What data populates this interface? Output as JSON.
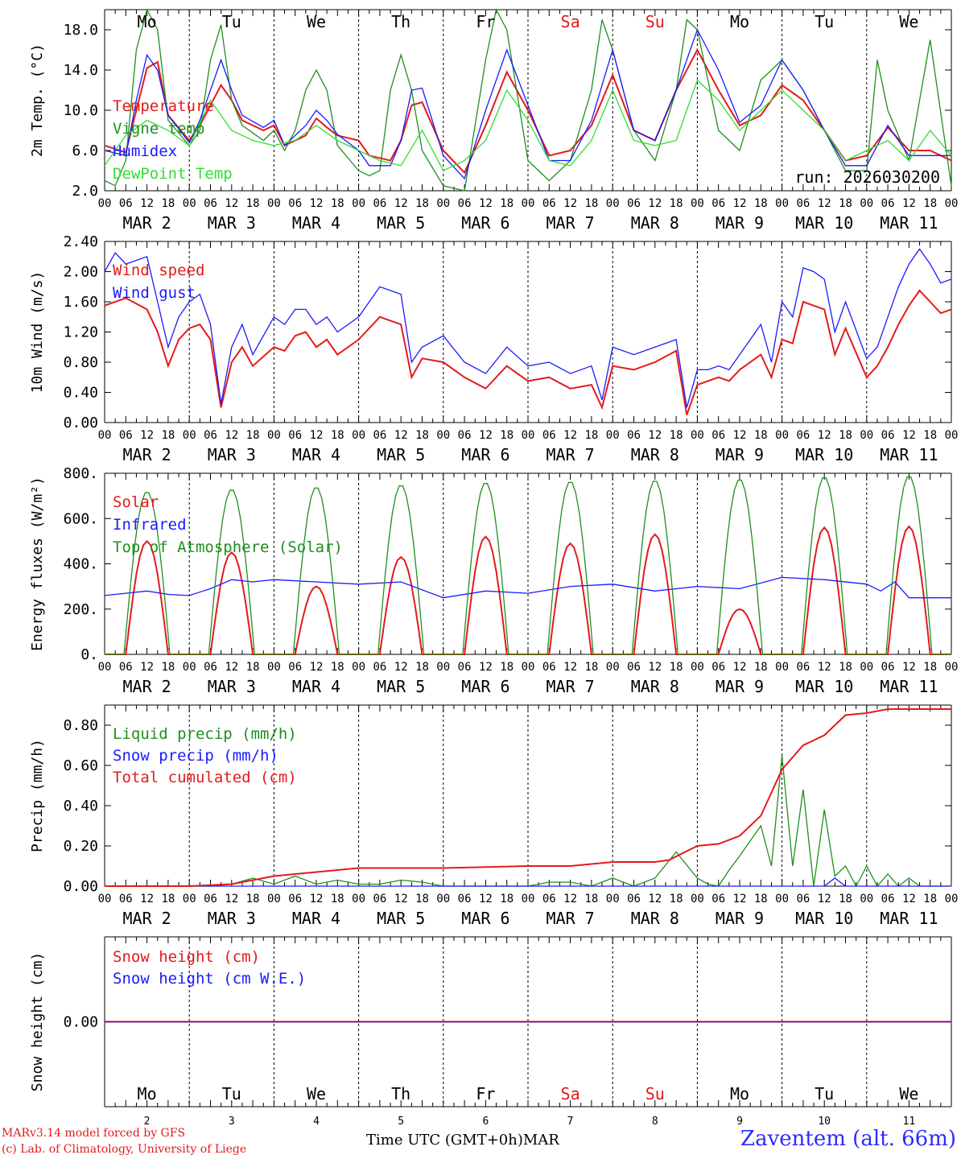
{
  "colors": {
    "red": "#e31a1c",
    "green": "#1f8f1f",
    "blue": "#1a1aff",
    "lightgreen": "#33dd33",
    "grid": "#000000"
  },
  "days": [
    {
      "label": "Mo",
      "weekend": false,
      "date": "2",
      "month_label": "MAR  2"
    },
    {
      "label": "Tu",
      "weekend": false,
      "date": "3",
      "month_label": "MAR  3"
    },
    {
      "label": "We",
      "weekend": false,
      "date": "4",
      "month_label": "MAR  4"
    },
    {
      "label": "Th",
      "weekend": false,
      "date": "5",
      "month_label": "MAR  5"
    },
    {
      "label": "Fr",
      "weekend": false,
      "date": "6",
      "month_label": "MAR  6"
    },
    {
      "label": "Sa",
      "weekend": true,
      "date": "7",
      "month_label": "MAR  7"
    },
    {
      "label": "Su",
      "weekend": true,
      "date": "8",
      "month_label": "MAR  8"
    },
    {
      "label": "Mo",
      "weekend": false,
      "date": "9",
      "month_label": "MAR  9"
    },
    {
      "label": "Tu",
      "weekend": false,
      "date": "10",
      "month_label": "MAR 10"
    },
    {
      "label": "We",
      "weekend": false,
      "date": "11",
      "month_label": "MAR 11"
    }
  ],
  "hour_ticks": [
    "00",
    "06",
    "12",
    "18"
  ],
  "final_tick": "00",
  "run_label": "run: 2026030200",
  "footer": {
    "credit_line1": "MARv3.14 model forced by GFS",
    "credit_line2": "(c) Lab. of Climatology, University of Liege",
    "axis_caption": "Time UTC (GMT+0h)",
    "month": "MAR",
    "station": "Zaventem (alt. 66m)"
  },
  "chart_data": [
    {
      "type": "line",
      "ylabel": "2m Temp. (°C)",
      "ylim": [
        2.0,
        20.0
      ],
      "yticks": [
        2.0,
        6.0,
        10.0,
        14.0,
        18.0
      ],
      "ytick_labels": [
        "2.0",
        "6.0",
        "10.0",
        "14.0",
        "18.0"
      ],
      "x_unit": "hours since MAR 2 00 UTC",
      "series": [
        {
          "name": "Temperature",
          "color": "red",
          "x": [
            0,
            6,
            9,
            12,
            15,
            18,
            24,
            27,
            33,
            36,
            39,
            45,
            48,
            51,
            57,
            60,
            63,
            66,
            72,
            75,
            81,
            84,
            87,
            90,
            96,
            102,
            108,
            114,
            120,
            126,
            132,
            138,
            144,
            150,
            156,
            162,
            168,
            174,
            180,
            186,
            192,
            198,
            204,
            210,
            216,
            222,
            228,
            234,
            240
          ],
          "values": [
            6.5,
            5.8,
            10,
            14.2,
            14.8,
            9.5,
            7.0,
            8.5,
            12.5,
            11.0,
            9.0,
            8.0,
            8.5,
            6.5,
            7.5,
            9.2,
            8.3,
            7.5,
            7.0,
            5.5,
            5.0,
            7.0,
            10.5,
            10.8,
            6.0,
            3.8,
            8.5,
            13.8,
            10.0,
            5.5,
            6.0,
            8.5,
            13.5,
            8.0,
            7.0,
            12.0,
            16.0,
            12.0,
            8.5,
            9.5,
            12.5,
            11.0,
            8.0,
            5.0,
            5.5,
            8.3,
            6.0,
            6.0,
            5.0
          ]
        },
        {
          "name": "Vigne temp",
          "color": "green",
          "x": [
            0,
            3,
            6,
            9,
            12,
            15,
            18,
            24,
            27,
            30,
            33,
            36,
            39,
            45,
            48,
            51,
            54,
            57,
            60,
            63,
            66,
            72,
            75,
            78,
            81,
            84,
            87,
            90,
            96,
            102,
            108,
            111,
            114,
            120,
            126,
            132,
            138,
            141,
            144,
            150,
            156,
            162,
            165,
            168,
            174,
            180,
            186,
            192,
            198,
            204,
            210,
            216,
            219,
            222,
            228,
            234,
            240
          ],
          "values": [
            3.0,
            2.5,
            5,
            16,
            20,
            18,
            9,
            6.5,
            8,
            15,
            18.5,
            11,
            8.5,
            7.0,
            8.0,
            6.0,
            8,
            12,
            14,
            12,
            6.5,
            4.0,
            3.5,
            4,
            12,
            15.5,
            12,
            6,
            2.5,
            2.0,
            15,
            20,
            18,
            5,
            3,
            5,
            12,
            19,
            16,
            8,
            5,
            12,
            19,
            18,
            8,
            6,
            13,
            15,
            12,
            8,
            4,
            4,
            15,
            10,
            5,
            17,
            2.5
          ]
        },
        {
          "name": "Humidex",
          "color": "blue",
          "x": [
            0,
            6,
            9,
            12,
            15,
            18,
            24,
            27,
            33,
            36,
            39,
            45,
            48,
            51,
            57,
            60,
            63,
            66,
            72,
            75,
            81,
            84,
            87,
            90,
            96,
            102,
            108,
            114,
            120,
            126,
            132,
            138,
            144,
            150,
            156,
            162,
            168,
            174,
            180,
            186,
            192,
            198,
            204,
            210,
            216,
            222,
            228,
            234,
            240
          ],
          "values": [
            6.0,
            5.5,
            11,
            15.5,
            14,
            9.5,
            6.8,
            9,
            15,
            12,
            9.5,
            8.3,
            9,
            6.5,
            8.5,
            10,
            9,
            7.6,
            6,
            4.5,
            4.5,
            7,
            12,
            12.2,
            5.5,
            3.2,
            10,
            16,
            10.5,
            5,
            5,
            9,
            16,
            8,
            7,
            12,
            18,
            14,
            8.8,
            10.5,
            15,
            12,
            8,
            4.5,
            4.5,
            8.5,
            5.5,
            5.5,
            5.5
          ]
        },
        {
          "name": "DewPoint Temp",
          "color": "lightgreen",
          "x": [
            0,
            6,
            12,
            18,
            24,
            30,
            36,
            42,
            48,
            54,
            60,
            66,
            72,
            78,
            84,
            90,
            96,
            102,
            108,
            114,
            120,
            126,
            132,
            138,
            144,
            150,
            156,
            162,
            168,
            174,
            180,
            186,
            192,
            198,
            204,
            210,
            216,
            222,
            228,
            234,
            240
          ],
          "values": [
            4.5,
            7.5,
            9,
            8,
            6.5,
            11,
            8,
            7,
            6.5,
            7,
            8.5,
            7,
            6,
            5,
            4.5,
            8,
            4,
            5,
            7,
            12,
            9,
            5,
            4.5,
            7,
            12,
            7,
            6.5,
            7,
            13,
            11,
            8,
            10,
            12,
            10,
            8,
            5,
            6,
            7,
            5,
            8,
            5.5
          ]
        }
      ]
    },
    {
      "type": "line",
      "ylabel": "10m Wind (m/s)",
      "ylim": [
        0,
        2.4
      ],
      "yticks": [
        0,
        0.4,
        0.8,
        1.2,
        1.6,
        2.0,
        2.4
      ],
      "ytick_labels": [
        "0.00",
        "0.40",
        "0.80",
        "1.20",
        "1.60",
        "2.00",
        "2.40"
      ],
      "series": [
        {
          "name": "Wind speed",
          "color": "red",
          "x": [
            0,
            6,
            12,
            15,
            18,
            21,
            24,
            27,
            30,
            33,
            36,
            39,
            42,
            48,
            51,
            54,
            57,
            60,
            63,
            66,
            72,
            78,
            84,
            87,
            90,
            96,
            102,
            108,
            114,
            120,
            126,
            132,
            138,
            141,
            144,
            150,
            156,
            162,
            165,
            168,
            171,
            174,
            177,
            180,
            186,
            189,
            192,
            195,
            198,
            201,
            204,
            207,
            210,
            216,
            219,
            222,
            225,
            228,
            231,
            234,
            237,
            240
          ],
          "values": [
            1.55,
            1.65,
            1.5,
            1.2,
            0.75,
            1.1,
            1.25,
            1.3,
            1.1,
            0.2,
            0.8,
            1.0,
            0.75,
            1.0,
            0.95,
            1.15,
            1.2,
            1.0,
            1.1,
            0.9,
            1.1,
            1.4,
            1.3,
            0.6,
            0.85,
            0.8,
            0.6,
            0.45,
            0.75,
            0.55,
            0.6,
            0.45,
            0.5,
            0.2,
            0.75,
            0.7,
            0.8,
            0.95,
            0.1,
            0.5,
            0.55,
            0.6,
            0.55,
            0.7,
            0.9,
            0.6,
            1.1,
            1.05,
            1.6,
            1.55,
            1.5,
            0.9,
            1.25,
            0.6,
            0.75,
            1.0,
            1.3,
            1.55,
            1.75,
            1.6,
            1.45,
            1.5
          ]
        },
        {
          "name": "Wind gust",
          "color": "blue",
          "x": [
            0,
            3,
            6,
            12,
            15,
            18,
            21,
            24,
            27,
            30,
            33,
            36,
            39,
            42,
            48,
            51,
            54,
            57,
            60,
            63,
            66,
            72,
            78,
            84,
            87,
            90,
            96,
            102,
            108,
            114,
            120,
            126,
            132,
            138,
            141,
            144,
            150,
            156,
            162,
            165,
            168,
            171,
            174,
            177,
            180,
            186,
            189,
            192,
            195,
            198,
            201,
            204,
            207,
            210,
            216,
            219,
            222,
            225,
            228,
            231,
            234,
            237,
            240
          ],
          "values": [
            2.0,
            2.25,
            2.1,
            2.2,
            1.6,
            1.0,
            1.4,
            1.6,
            1.7,
            1.3,
            0.25,
            1.0,
            1.3,
            0.9,
            1.4,
            1.3,
            1.5,
            1.5,
            1.3,
            1.4,
            1.2,
            1.4,
            1.8,
            1.7,
            0.8,
            1.0,
            1.15,
            0.8,
            0.65,
            1.0,
            0.75,
            0.8,
            0.65,
            0.75,
            0.3,
            1.0,
            0.9,
            1.0,
            1.1,
            0.2,
            0.7,
            0.7,
            0.75,
            0.7,
            0.9,
            1.3,
            0.8,
            1.6,
            1.4,
            2.05,
            2.0,
            1.9,
            1.2,
            1.6,
            0.85,
            1.0,
            1.4,
            1.8,
            2.1,
            2.3,
            2.1,
            1.85,
            1.9
          ]
        }
      ]
    },
    {
      "type": "line",
      "ylabel": "Energy fluxes (W/m²)",
      "ylim": [
        0,
        800
      ],
      "yticks": [
        0,
        200,
        400,
        600,
        800
      ],
      "ytick_labels": [
        "0.",
        "200.",
        "400.",
        "600.",
        "800."
      ],
      "series": [
        {
          "name": "Solar",
          "color": "red",
          "peak_hour": 12,
          "half_width_h": 6,
          "daily_peaks": [
            500,
            450,
            300,
            430,
            520,
            490,
            530,
            200,
            560,
            565
          ]
        },
        {
          "name": "Infrared",
          "color": "blue",
          "x": [
            0,
            6,
            12,
            18,
            24,
            30,
            36,
            42,
            48,
            60,
            72,
            84,
            96,
            108,
            120,
            132,
            144,
            156,
            168,
            180,
            192,
            204,
            216,
            220,
            224,
            228,
            240
          ],
          "values": [
            260,
            270,
            280,
            265,
            260,
            290,
            330,
            320,
            330,
            320,
            310,
            320,
            250,
            280,
            270,
            300,
            310,
            280,
            300,
            290,
            340,
            330,
            310,
            280,
            320,
            250,
            250
          ]
        },
        {
          "name": "Top of Atmosphere (Solar)",
          "color": "green",
          "peak_hour": 12,
          "half_width_h": 6.5,
          "daily_peaks": [
            720,
            730,
            740,
            750,
            760,
            765,
            770,
            775,
            785,
            790
          ]
        }
      ]
    },
    {
      "type": "line",
      "ylabel": "Precip (mm/h)",
      "ylim": [
        0,
        0.9
      ],
      "yticks": [
        0,
        0.2,
        0.4,
        0.6,
        0.8
      ],
      "ytick_labels": [
        "0.00",
        "0.20",
        "0.40",
        "0.60",
        "0.80"
      ],
      "series": [
        {
          "name": "Liquid precip (mm/h)",
          "color": "green",
          "x": [
            0,
            30,
            36,
            42,
            48,
            54,
            60,
            66,
            72,
            78,
            84,
            90,
            96,
            120,
            126,
            132,
            138,
            144,
            150,
            156,
            162,
            168,
            171,
            174,
            177,
            180,
            186,
            189,
            192,
            195,
            198,
            201,
            204,
            207,
            210,
            213,
            216,
            219,
            222,
            225,
            228,
            231,
            234,
            237,
            240
          ],
          "values": [
            0,
            0,
            0.01,
            0.04,
            0.01,
            0.05,
            0.01,
            0.03,
            0.01,
            0.01,
            0.03,
            0.02,
            0,
            0,
            0.02,
            0.02,
            0,
            0.04,
            0,
            0.04,
            0.17,
            0.04,
            0.01,
            0,
            0.08,
            0.15,
            0.3,
            0.1,
            0.65,
            0.1,
            0.48,
            0,
            0.38,
            0.05,
            0.1,
            0,
            0.1,
            0,
            0.06,
            0,
            0.04,
            0,
            0,
            0,
            0
          ]
        },
        {
          "name": "Snow precip (mm/h)",
          "color": "blue",
          "x": [
            0,
            204,
            207,
            210,
            240
          ],
          "values": [
            0,
            0,
            0.04,
            0,
            0
          ]
        },
        {
          "name": "Total cumulated (cm)",
          "color": "red",
          "x": [
            0,
            24,
            36,
            48,
            60,
            72,
            84,
            96,
            120,
            132,
            144,
            156,
            160,
            168,
            174,
            180,
            186,
            192,
            198,
            204,
            210,
            216,
            222,
            228,
            234,
            240
          ],
          "values": [
            0,
            0,
            0.01,
            0.05,
            0.07,
            0.09,
            0.09,
            0.09,
            0.1,
            0.1,
            0.12,
            0.12,
            0.13,
            0.2,
            0.21,
            0.25,
            0.35,
            0.58,
            0.7,
            0.75,
            0.85,
            0.86,
            0.88,
            0.88,
            0.88,
            0.88
          ]
        }
      ]
    },
    {
      "type": "line",
      "ylabel": "Snow height (cm)",
      "ytick_labels": [
        "0.00"
      ],
      "series": [
        {
          "name": "Snow height (cm)",
          "color": "red",
          "x": [
            0,
            240
          ],
          "values": [
            0,
            0
          ]
        },
        {
          "name": "Snow height (cm W.E.)",
          "color": "blue",
          "x": [
            0,
            240
          ],
          "values": [
            0,
            0
          ]
        }
      ]
    }
  ]
}
